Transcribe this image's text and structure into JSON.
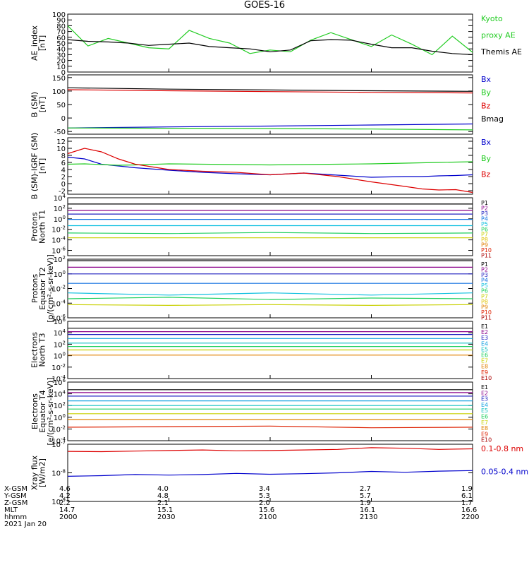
{
  "title": "GOES-16",
  "footer": {
    "date": "2021 Jan 20",
    "rows": [
      {
        "label": "X-GSM",
        "values": [
          "4.6",
          "4.0",
          "3.4",
          "2.7",
          "1.9"
        ]
      },
      {
        "label": "Y-GSM",
        "values": [
          "4.2",
          "4.8",
          "5.3",
          "5.7",
          "6.1"
        ]
      },
      {
        "label": "Z-GSM",
        "values": [
          "2.2",
          "2.1",
          "2.0",
          "1.9",
          "1.7"
        ]
      },
      {
        "label": "MLT",
        "values": [
          "14.7",
          "15.1",
          "15.6",
          "16.1",
          "16.6"
        ]
      },
      {
        "label": "hhmm",
        "values": [
          "2000",
          "2030",
          "2100",
          "2130",
          "2200"
        ]
      }
    ]
  },
  "colors": {
    "black": "#000000",
    "blue": "#0000cc",
    "green": "#22cc22",
    "red": "#dd0000"
  },
  "chart_data": [
    {
      "type": "line",
      "ylabel": [
        "AE_index",
        "[nT]"
      ],
      "yscale": "linear",
      "ylim": [
        0,
        100
      ],
      "yticks": [
        "0",
        "10",
        "20",
        "30",
        "40",
        "50",
        "60",
        "70",
        "80",
        "90",
        "100"
      ],
      "x": [
        0,
        6,
        12,
        18,
        24,
        30,
        36,
        42,
        48,
        54,
        60,
        66,
        72,
        78,
        84,
        90,
        96,
        102,
        108,
        114,
        120
      ],
      "series": [
        {
          "name": "Kyoto proxy AE",
          "color": "#22cc22",
          "values": [
            80,
            45,
            58,
            50,
            42,
            40,
            72,
            58,
            50,
            32,
            38,
            35,
            55,
            68,
            56,
            44,
            64,
            48,
            30,
            62,
            34
          ]
        },
        {
          "name": "Themis AE",
          "color": "#000000",
          "values": [
            56,
            53,
            52,
            50,
            46,
            48,
            50,
            44,
            42,
            40,
            35,
            38,
            54,
            56,
            55,
            48,
            42,
            42,
            36,
            32,
            30
          ]
        }
      ],
      "legend": [
        {
          "text": "Kyoto",
          "color": "#22cc22"
        },
        {
          "text": "proxy AE",
          "color": "#22cc22"
        },
        {
          "text": "Themis AE",
          "color": "#000000"
        }
      ]
    },
    {
      "type": "line",
      "ylabel": [
        "B (SM)",
        "[nT]"
      ],
      "yscale": "linear",
      "ylim": [
        -60,
        160
      ],
      "yticks": [
        "-50",
        "0",
        "50",
        "100",
        "150"
      ],
      "x": [
        0,
        30,
        60,
        90,
        120
      ],
      "series": [
        {
          "name": "Bx",
          "color": "#0000cc",
          "values": [
            -37,
            -33,
            -30,
            -26,
            -22
          ]
        },
        {
          "name": "By",
          "color": "#22cc22",
          "values": [
            -37,
            -38,
            -39,
            -41,
            -44
          ]
        },
        {
          "name": "Bz",
          "color": "#dd0000",
          "values": [
            105,
            101,
            98,
            95,
            93
          ]
        },
        {
          "name": "Bmag",
          "color": "#000000",
          "values": [
            112,
            107,
            104,
            101,
            99
          ]
        }
      ],
      "legend": [
        {
          "text": "Bx",
          "color": "#0000cc"
        },
        {
          "text": "By",
          "color": "#22cc22"
        },
        {
          "text": "Bz",
          "color": "#dd0000"
        },
        {
          "text": "Bmag",
          "color": "#000000"
        }
      ]
    },
    {
      "type": "line",
      "ylabel": [
        "B (SM)-IGRF (SM)",
        "[nT]"
      ],
      "yscale": "linear",
      "ylim": [
        -3,
        13
      ],
      "yticks": [
        "-2",
        "0",
        "2",
        "4",
        "6",
        "8",
        "10",
        "12"
      ],
      "x": [
        0,
        5,
        10,
        15,
        20,
        30,
        40,
        50,
        60,
        70,
        80,
        90,
        100,
        105,
        110,
        115,
        120
      ],
      "series": [
        {
          "name": "Bx",
          "color": "#0000cc",
          "values": [
            7.5,
            7,
            5.5,
            5,
            4.5,
            3.8,
            3.2,
            2.8,
            2.5,
            3,
            2.4,
            1.8,
            2,
            2,
            2.2,
            2.3,
            2.5
          ]
        },
        {
          "name": "By",
          "color": "#22cc22",
          "values": [
            5.5,
            5.6,
            5.4,
            5.2,
            5.3,
            5.6,
            5.5,
            5.4,
            5.3,
            5.4,
            5.5,
            5.6,
            5.8,
            5.9,
            6,
            6.1,
            6.2
          ]
        },
        {
          "name": "Bz",
          "color": "#dd0000",
          "values": [
            8.5,
            10,
            9,
            7,
            5.5,
            4,
            3.5,
            3.2,
            2.5,
            3,
            2,
            0.5,
            -0.8,
            -1.5,
            -1.8,
            -1.7,
            -2.5
          ]
        }
      ],
      "legend": [
        {
          "text": "Bx",
          "color": "#0000cc"
        },
        {
          "text": "By",
          "color": "#22cc22"
        },
        {
          "text": "Bz",
          "color": "#dd0000"
        }
      ]
    },
    {
      "type": "line",
      "ylabel": [
        "Protons",
        "North T1"
      ],
      "yscale": "log",
      "ylim": [
        -7,
        4
      ],
      "yticks": [
        "10^4",
        "10^2",
        "10^0",
        "10^-2",
        "10^-4",
        "10^-6"
      ],
      "x": [
        0,
        30,
        60,
        90,
        120
      ],
      "series": [
        {
          "name": "P1",
          "color": "#000000",
          "values": [
            2.8,
            2.8,
            2.8,
            2.8,
            2.8
          ]
        },
        {
          "name": "P2",
          "color": "#8a008a",
          "values": [
            1.6,
            1.6,
            1.6,
            1.6,
            1.6
          ]
        },
        {
          "name": "P3",
          "color": "#2020c0",
          "values": [
            0.9,
            0.9,
            0.9,
            0.9,
            0.9
          ]
        },
        {
          "name": "P4",
          "color": "#1070e0",
          "values": [
            -0.1,
            -0.1,
            -0.1,
            -0.1,
            -0.1
          ]
        },
        {
          "name": "P5",
          "color": "#10c0e0",
          "values": [
            -1.3,
            -1.3,
            -1.3,
            -1.3,
            -1.3
          ]
        },
        {
          "name": "P6",
          "color": "#20d060",
          "values": [
            -2.7,
            -2.8,
            -2.6,
            -2.8,
            -2.7
          ]
        },
        {
          "name": "P7",
          "color": "#c8d000",
          "values": [
            -3.6,
            -3.6,
            -3.6,
            -3.6,
            -3.6
          ]
        }
      ],
      "legend": [
        {
          "text": "P1",
          "color": "#000000"
        },
        {
          "text": "P2",
          "color": "#8a008a"
        },
        {
          "text": "P3",
          "color": "#2020c0"
        },
        {
          "text": "P4",
          "color": "#1070e0"
        },
        {
          "text": "P5",
          "color": "#10c0e0"
        },
        {
          "text": "P6",
          "color": "#20d060"
        },
        {
          "text": "P7",
          "color": "#c8d000"
        },
        {
          "text": "P8",
          "color": "#e0c000"
        },
        {
          "text": "P9",
          "color": "#e08000"
        },
        {
          "text": "P10",
          "color": "#dd2000"
        },
        {
          "text": "P11",
          "color": "#aa0000"
        }
      ]
    },
    {
      "type": "line",
      "ylabel": [
        "Protons",
        "Equator T2",
        "[p/(cm²-s-sr-keV)]"
      ],
      "yscale": "log",
      "ylim": [
        -6,
        2
      ],
      "yticks": [
        "10^2",
        "10^0",
        "10^-2",
        "10^-4",
        "10^-6"
      ],
      "x": [
        0,
        30,
        60,
        90,
        120
      ],
      "series": [
        {
          "name": "P1",
          "color": "#000000",
          "values": [
            1.8,
            1.8,
            1.8,
            1.8,
            1.8
          ]
        },
        {
          "name": "P2",
          "color": "#8a008a",
          "values": [
            0.9,
            0.9,
            0.9,
            0.9,
            0.9
          ]
        },
        {
          "name": "P3",
          "color": "#2020c0",
          "values": [
            0,
            0,
            0,
            0,
            0
          ]
        },
        {
          "name": "P4",
          "color": "#1070e0",
          "values": [
            -1.3,
            -1.3,
            -1.3,
            -1.3,
            -1.3
          ]
        },
        {
          "name": "P5",
          "color": "#10c0e0",
          "values": [
            -2.6,
            -2.9,
            -2.6,
            -2.9,
            -2.6
          ]
        },
        {
          "name": "P6",
          "color": "#20d060",
          "values": [
            -3.4,
            -3.2,
            -3.5,
            -3.3,
            -3.4
          ]
        },
        {
          "name": "P7",
          "color": "#c8d000",
          "values": [
            -4.2,
            -4.3,
            -4.2,
            -4.3,
            -4.2
          ]
        }
      ],
      "legend": [
        {
          "text": "P1",
          "color": "#000000"
        },
        {
          "text": "P2",
          "color": "#8a008a"
        },
        {
          "text": "P3",
          "color": "#2020c0"
        },
        {
          "text": "P4",
          "color": "#1070e0"
        },
        {
          "text": "P5",
          "color": "#10c0e0"
        },
        {
          "text": "P6",
          "color": "#20d060"
        },
        {
          "text": "P7",
          "color": "#c8d000"
        },
        {
          "text": "P8",
          "color": "#e0c000"
        },
        {
          "text": "P9",
          "color": "#e08000"
        },
        {
          "text": "P10",
          "color": "#dd2000"
        },
        {
          "text": "P11",
          "color": "#aa0000"
        }
      ]
    },
    {
      "type": "line",
      "ylabel": [
        "Electrons",
        "North T3"
      ],
      "yscale": "log",
      "ylim": [
        -4,
        6
      ],
      "yticks": [
        "10^6",
        "10^4",
        "10^2",
        "10^0",
        "10^-2",
        "10^-4"
      ],
      "x": [
        0,
        30,
        60,
        90,
        120
      ],
      "series": [
        {
          "name": "E1",
          "color": "#000000",
          "values": [
            4.8,
            4.8,
            4.8,
            4.8,
            4.8
          ]
        },
        {
          "name": "E2",
          "color": "#8a008a",
          "values": [
            4.2,
            4.2,
            4.2,
            4.2,
            4.2
          ]
        },
        {
          "name": "E3",
          "color": "#2020c0",
          "values": [
            3.7,
            3.7,
            3.7,
            3.7,
            3.7
          ]
        },
        {
          "name": "E4",
          "color": "#10a0e0",
          "values": [
            3,
            3,
            3,
            3,
            3
          ]
        },
        {
          "name": "E5",
          "color": "#10c0c0",
          "values": [
            2.2,
            2.2,
            2.2,
            2.2,
            2.2
          ]
        },
        {
          "name": "E6",
          "color": "#20d060",
          "values": [
            1.6,
            1.6,
            1.6,
            1.6,
            1.6
          ]
        },
        {
          "name": "E7",
          "color": "#c8d000",
          "values": [
            1,
            1,
            1,
            1,
            1
          ]
        },
        {
          "name": "E8",
          "color": "#e08000",
          "values": [
            0.1,
            0.1,
            0.1,
            0.1,
            0.1
          ]
        }
      ],
      "legend": [
        {
          "text": "E1",
          "color": "#000000"
        },
        {
          "text": "E2",
          "color": "#8a008a"
        },
        {
          "text": "E3",
          "color": "#2020c0"
        },
        {
          "text": "E4",
          "color": "#10a0e0"
        },
        {
          "text": "E5",
          "color": "#10c0c0"
        },
        {
          "text": "E6",
          "color": "#20d060"
        },
        {
          "text": "E7",
          "color": "#c8d000"
        },
        {
          "text": "E8",
          "color": "#e08000"
        },
        {
          "text": "E9",
          "color": "#dd2000"
        },
        {
          "text": "E10",
          "color": "#aa0000"
        }
      ]
    },
    {
      "type": "line",
      "ylabel": [
        "Electrons",
        "Equator T4",
        "[e/(cm²-s-sr-keV)]"
      ],
      "yscale": "log",
      "ylim": [
        -4,
        6
      ],
      "yticks": [
        "10^6",
        "10^4",
        "10^2",
        "10^0",
        "10^-2",
        "10^-4"
      ],
      "x": [
        0,
        30,
        60,
        90,
        120
      ],
      "series": [
        {
          "name": "E1",
          "color": "#000000",
          "values": [
            4.7,
            4.7,
            4.7,
            4.7,
            4.7
          ]
        },
        {
          "name": "E2",
          "color": "#8a008a",
          "values": [
            4.2,
            4.2,
            4.2,
            4.2,
            4.2
          ]
        },
        {
          "name": "E3",
          "color": "#2020c0",
          "values": [
            3.6,
            3.6,
            3.6,
            3.6,
            3.6
          ]
        },
        {
          "name": "E4",
          "color": "#10a0e0",
          "values": [
            2.8,
            2.8,
            2.8,
            2.8,
            2.8
          ]
        },
        {
          "name": "E5",
          "color": "#10c0c0",
          "values": [
            2,
            2,
            2,
            2,
            2
          ]
        },
        {
          "name": "E6",
          "color": "#20d060",
          "values": [
            1.4,
            1.4,
            1.4,
            1.4,
            1.4
          ]
        },
        {
          "name": "E7",
          "color": "#c8d000",
          "values": [
            0.6,
            0.6,
            0.6,
            0.6,
            0.6
          ]
        },
        {
          "name": "E8",
          "color": "#e08000",
          "values": [
            -0.4,
            -0.4,
            -0.4,
            -0.4,
            -0.4
          ]
        },
        {
          "name": "E9",
          "color": "#dd2000",
          "values": [
            -1.7,
            -1.6,
            -1.5,
            -1.8,
            -1.7
          ]
        }
      ],
      "legend": [
        {
          "text": "E1",
          "color": "#000000"
        },
        {
          "text": "E2",
          "color": "#8a008a"
        },
        {
          "text": "E3",
          "color": "#2020c0"
        },
        {
          "text": "E4",
          "color": "#10a0e0"
        },
        {
          "text": "E5",
          "color": "#10c0c0"
        },
        {
          "text": "E6",
          "color": "#20d060"
        },
        {
          "text": "E7",
          "color": "#c8d000"
        },
        {
          "text": "E8",
          "color": "#e08000"
        },
        {
          "text": "E9",
          "color": "#dd2000"
        },
        {
          "text": "E10",
          "color": "#aa0000"
        }
      ]
    },
    {
      "type": "line",
      "ylabel": [
        "Xray flux",
        "[W/m2]"
      ],
      "yscale": "log",
      "ylim": [
        -9,
        -7
      ],
      "yticks": [
        "10^-7",
        "10^-8",
        "10^-9"
      ],
      "x": [
        0,
        10,
        20,
        30,
        40,
        50,
        60,
        70,
        80,
        90,
        100,
        110,
        120
      ],
      "series": [
        {
          "name": "0.1-0.8 nm",
          "color": "#dd0000",
          "values": [
            -7.25,
            -7.26,
            -7.24,
            -7.22,
            -7.2,
            -7.23,
            -7.22,
            -7.2,
            -7.18,
            -7.12,
            -7.14,
            -7.18,
            -7.16
          ]
        },
        {
          "name": "0.05-0.4 nm",
          "color": "#0000cc",
          "values": [
            -8.12,
            -8.1,
            -8.06,
            -8.08,
            -8.06,
            -8.02,
            -8.05,
            -8.03,
            -8,
            -7.95,
            -7.98,
            -7.94,
            -7.92
          ]
        }
      ],
      "legend": [
        {
          "text": "0.1-0.8 nm",
          "color": "#dd0000"
        },
        {
          "text": "0.05-0.4 nm",
          "color": "#0000cc"
        }
      ]
    }
  ]
}
